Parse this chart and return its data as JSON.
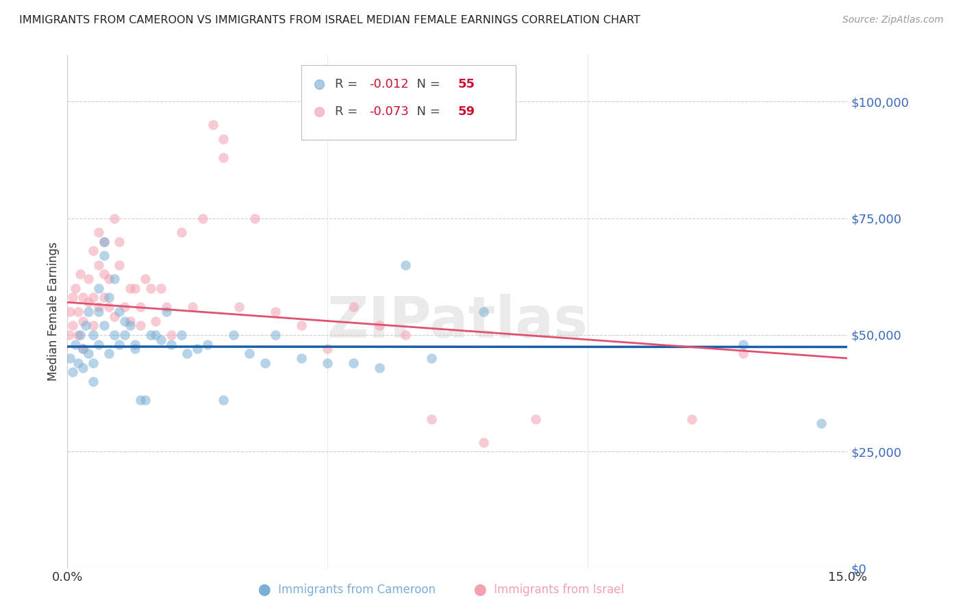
{
  "title": "IMMIGRANTS FROM CAMEROON VS IMMIGRANTS FROM ISRAEL MEDIAN FEMALE EARNINGS CORRELATION CHART",
  "source": "Source: ZipAtlas.com",
  "ylabel": "Median Female Earnings",
  "xlim": [
    0,
    0.15
  ],
  "ylim": [
    0,
    110000
  ],
  "yticks": [
    0,
    25000,
    50000,
    75000,
    100000
  ],
  "ytick_labels": [
    "$0",
    "$25,000",
    "$50,000",
    "$75,000",
    "$100,000"
  ],
  "xtick_vals": [
    0.0,
    0.05,
    0.1,
    0.15
  ],
  "xtick_labels": [
    "0.0%",
    "",
    "",
    "15.0%"
  ],
  "background_color": "#ffffff",
  "grid_color": "#cccccc",
  "watermark": "ZIPatlas",
  "cameroon_color": "#7bafd4",
  "israel_color": "#f4a0b0",
  "cameroon_line_color": "#1a5ea8",
  "israel_line_color": "#e05070",
  "cameroon_R": -0.012,
  "cameroon_N": 55,
  "israel_R": -0.073,
  "israel_N": 59,
  "cameroon_x": [
    0.0005,
    0.001,
    0.0015,
    0.002,
    0.0025,
    0.003,
    0.003,
    0.0035,
    0.004,
    0.004,
    0.005,
    0.005,
    0.005,
    0.006,
    0.006,
    0.006,
    0.007,
    0.007,
    0.007,
    0.008,
    0.008,
    0.009,
    0.009,
    0.01,
    0.01,
    0.011,
    0.011,
    0.012,
    0.013,
    0.013,
    0.014,
    0.015,
    0.016,
    0.017,
    0.018,
    0.019,
    0.02,
    0.022,
    0.023,
    0.025,
    0.027,
    0.03,
    0.032,
    0.035,
    0.038,
    0.04,
    0.045,
    0.05,
    0.055,
    0.06,
    0.065,
    0.07,
    0.08,
    0.13,
    0.145
  ],
  "cameroon_y": [
    45000,
    42000,
    48000,
    44000,
    50000,
    47000,
    43000,
    52000,
    46000,
    55000,
    50000,
    44000,
    40000,
    60000,
    55000,
    48000,
    67000,
    70000,
    52000,
    58000,
    46000,
    62000,
    50000,
    55000,
    48000,
    50000,
    53000,
    52000,
    48000,
    47000,
    36000,
    36000,
    50000,
    50000,
    49000,
    55000,
    48000,
    50000,
    46000,
    47000,
    48000,
    36000,
    50000,
    46000,
    44000,
    50000,
    45000,
    44000,
    44000,
    43000,
    65000,
    45000,
    55000,
    48000,
    31000
  ],
  "israel_x": [
    0.0003,
    0.0005,
    0.001,
    0.001,
    0.0015,
    0.002,
    0.002,
    0.0025,
    0.003,
    0.003,
    0.003,
    0.004,
    0.004,
    0.005,
    0.005,
    0.005,
    0.006,
    0.006,
    0.006,
    0.007,
    0.007,
    0.007,
    0.008,
    0.008,
    0.009,
    0.009,
    0.01,
    0.01,
    0.011,
    0.012,
    0.012,
    0.013,
    0.014,
    0.014,
    0.015,
    0.016,
    0.017,
    0.018,
    0.019,
    0.02,
    0.022,
    0.024,
    0.026,
    0.028,
    0.03,
    0.03,
    0.033,
    0.036,
    0.04,
    0.045,
    0.05,
    0.055,
    0.06,
    0.065,
    0.07,
    0.08,
    0.09,
    0.12,
    0.13
  ],
  "israel_y": [
    50000,
    55000,
    58000,
    52000,
    60000,
    55000,
    50000,
    63000,
    58000,
    53000,
    47000,
    62000,
    57000,
    68000,
    58000,
    52000,
    72000,
    65000,
    56000,
    70000,
    63000,
    58000,
    56000,
    62000,
    54000,
    75000,
    70000,
    65000,
    56000,
    60000,
    53000,
    60000,
    56000,
    52000,
    62000,
    60000,
    53000,
    60000,
    56000,
    50000,
    72000,
    56000,
    75000,
    95000,
    92000,
    88000,
    56000,
    75000,
    55000,
    52000,
    47000,
    56000,
    52000,
    50000,
    32000,
    27000,
    32000,
    32000,
    46000
  ]
}
